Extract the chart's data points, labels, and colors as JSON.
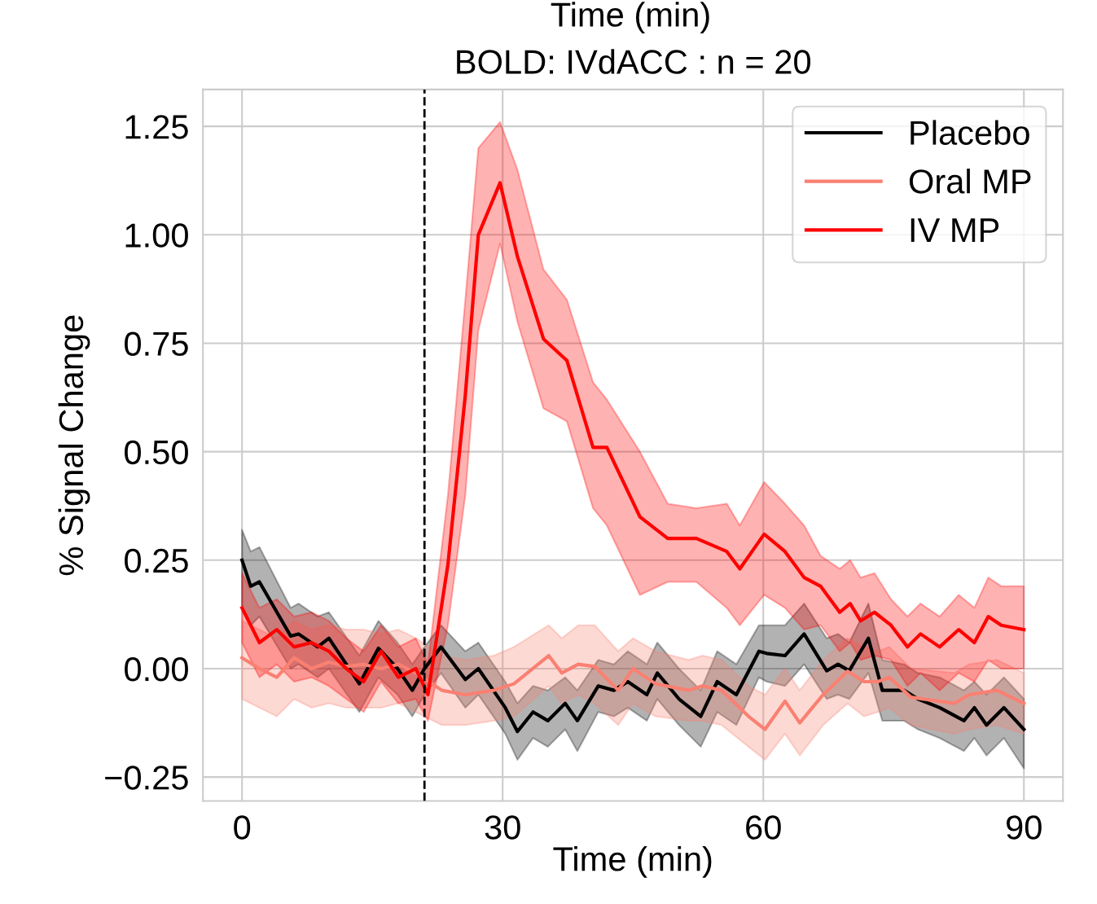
{
  "chart_data": {
    "type": "line",
    "title": "BOLD: IVdACC : n = 20",
    "xlabel": "Time (min)",
    "ylabel": "% Signal Change",
    "annotations": [
      "Time (min)"
    ],
    "xlim": [
      -4.5,
      94.5
    ],
    "xticks": [
      0,
      30,
      60,
      90
    ],
    "ylim": [
      -0.305,
      1.335
    ],
    "yticks": [
      {
        "value": -0.25,
        "label": "−0.25"
      },
      {
        "value": 0,
        "label": "0.00"
      },
      {
        "value": 0.25,
        "label": "0.25"
      },
      {
        "value": 0.5,
        "label": "0.50"
      },
      {
        "value": 0.75,
        "label": "0.75"
      },
      {
        "value": 1.0,
        "label": "1.00"
      },
      {
        "value": 1.25,
        "label": "1.25"
      }
    ],
    "grid": true,
    "legend": "top right",
    "line_style": "solid",
    "ref_lines": [
      {
        "axis": "x",
        "value": 21,
        "color": "#000000",
        "line_style": "dashed"
      }
    ],
    "series": [
      {
        "name": "Placebo",
        "color": "#000000",
        "x": [
          0,
          1,
          2,
          5.6,
          6.5,
          8.7,
          10,
          13.5,
          15.7,
          17.9,
          19.6,
          21,
          22.9,
          25.7,
          27.2,
          30.3,
          31.7,
          33.5,
          35.2,
          37.2,
          38.6,
          41,
          42.8,
          44.4,
          46.6,
          47.8,
          50.3,
          52.8,
          54.7,
          56.9,
          59.5,
          60.4,
          62.5,
          64.7,
          67.3,
          68.6,
          69.9,
          72.1,
          73.7,
          76.2,
          77.8,
          80.3,
          83.1,
          84.3,
          85.7,
          87.7,
          90
        ],
        "values": [
          0.25,
          0.19,
          0.2,
          0.075,
          0.08,
          0.05,
          0.07,
          -0.035,
          0.047,
          0.0,
          -0.05,
          0.0,
          0.05,
          -0.025,
          0.0,
          -0.09,
          -0.145,
          -0.1,
          -0.12,
          -0.08,
          -0.12,
          -0.04,
          -0.05,
          -0.03,
          -0.06,
          -0.01,
          -0.07,
          -0.11,
          -0.03,
          -0.06,
          0.04,
          0.035,
          0.03,
          0.08,
          -0.005,
          0.01,
          -0.005,
          0.07,
          -0.05,
          -0.05,
          -0.07,
          -0.09,
          -0.12,
          -0.09,
          -0.13,
          -0.09,
          -0.14
        ],
        "upper": [
          0.32,
          0.27,
          0.28,
          0.14,
          0.15,
          0.12,
          0.13,
          0.03,
          0.11,
          0.06,
          0.01,
          0.05,
          0.1,
          0.04,
          0.06,
          -0.03,
          -0.08,
          -0.04,
          -0.05,
          -0.02,
          -0.05,
          0.02,
          0.01,
          0.04,
          0.01,
          0.06,
          0.0,
          -0.05,
          0.04,
          0.01,
          0.1,
          0.1,
          0.1,
          0.15,
          0.07,
          0.08,
          0.06,
          0.15,
          0.02,
          0.01,
          -0.01,
          -0.02,
          -0.05,
          -0.03,
          -0.06,
          -0.02,
          -0.07
        ],
        "lower": [
          0.14,
          0.1,
          0.12,
          0.0,
          0.01,
          -0.02,
          0.0,
          -0.1,
          -0.02,
          -0.06,
          -0.11,
          -0.06,
          -0.01,
          -0.09,
          -0.06,
          -0.15,
          -0.21,
          -0.16,
          -0.18,
          -0.14,
          -0.19,
          -0.1,
          -0.11,
          -0.09,
          -0.12,
          -0.07,
          -0.13,
          -0.18,
          -0.1,
          -0.13,
          -0.02,
          -0.03,
          -0.04,
          0.01,
          -0.07,
          -0.06,
          -0.07,
          -0.01,
          -0.12,
          -0.12,
          -0.14,
          -0.16,
          -0.19,
          -0.16,
          -0.2,
          -0.16,
          -0.23
        ]
      },
      {
        "name": "Oral MP",
        "color": "#fa8072",
        "x": [
          0,
          2,
          4,
          6,
          8,
          10,
          12,
          14,
          16,
          18,
          20,
          23,
          25.7,
          29,
          31.3,
          35.3,
          36.8,
          38.7,
          40.6,
          43.3,
          45,
          47.6,
          51.4,
          53,
          55.2,
          58.3,
          60.2,
          62.5,
          64.2,
          66.9,
          69.7,
          71.6,
          73.2,
          74.5,
          77,
          82,
          83.7,
          86.9,
          90
        ],
        "values": [
          0.025,
          0.0,
          -0.02,
          0.025,
          0.0,
          0.015,
          0.005,
          0.01,
          0.0,
          0.01,
          -0.01,
          -0.05,
          -0.06,
          -0.05,
          -0.035,
          0.03,
          -0.01,
          0.01,
          0.005,
          -0.05,
          0.0,
          -0.035,
          -0.05,
          -0.04,
          -0.05,
          -0.11,
          -0.14,
          -0.075,
          -0.125,
          -0.06,
          -0.006,
          -0.03,
          -0.03,
          -0.02,
          -0.066,
          -0.08,
          -0.06,
          -0.05,
          -0.08
        ],
        "upper": [
          0.11,
          0.09,
          0.07,
          0.11,
          0.09,
          0.1,
          0.09,
          0.09,
          0.08,
          0.09,
          0.07,
          0.03,
          0.02,
          0.03,
          0.05,
          0.1,
          0.07,
          0.1,
          0.1,
          0.04,
          0.07,
          0.04,
          0.02,
          0.03,
          0.02,
          -0.04,
          -0.06,
          0.0,
          -0.05,
          0.02,
          0.07,
          0.05,
          0.04,
          0.05,
          0.0,
          -0.01,
          0.01,
          0.02,
          -0.01
        ],
        "lower": [
          -0.07,
          -0.09,
          -0.11,
          -0.07,
          -0.09,
          -0.08,
          -0.09,
          -0.09,
          -0.09,
          -0.08,
          -0.1,
          -0.13,
          -0.13,
          -0.12,
          -0.11,
          -0.04,
          -0.08,
          -0.06,
          -0.08,
          -0.13,
          -0.08,
          -0.11,
          -0.12,
          -0.12,
          -0.13,
          -0.18,
          -0.21,
          -0.15,
          -0.2,
          -0.13,
          -0.08,
          -0.11,
          -0.1,
          -0.09,
          -0.13,
          -0.15,
          -0.14,
          -0.13,
          -0.15
        ]
      },
      {
        "name": "IV MP",
        "color": "#ff0000",
        "x": [
          0,
          2,
          4,
          6,
          8,
          10,
          12,
          14,
          16,
          18,
          20,
          21.4,
          23.7,
          25.7,
          27.2,
          29.7,
          31.7,
          34.7,
          37.4,
          40.4,
          42,
          45.8,
          49,
          52.3,
          55.8,
          57.3,
          60.1,
          62.5,
          64.7,
          66.6,
          68.8,
          70,
          71.2,
          72.8,
          74.7,
          76.6,
          78.1,
          80.3,
          82.5,
          84.3,
          85.9,
          87.4,
          90
        ],
        "values": [
          0.14,
          0.06,
          0.09,
          0.05,
          0.06,
          0.04,
          0.0,
          -0.03,
          0.04,
          -0.02,
          0.0,
          -0.06,
          0.24,
          0.63,
          1.0,
          1.12,
          0.95,
          0.76,
          0.71,
          0.51,
          0.51,
          0.35,
          0.3,
          0.3,
          0.27,
          0.23,
          0.31,
          0.27,
          0.21,
          0.19,
          0.13,
          0.15,
          0.11,
          0.13,
          0.1,
          0.05,
          0.08,
          0.05,
          0.09,
          0.06,
          0.12,
          0.1,
          0.09
        ],
        "upper": [
          0.22,
          0.14,
          0.16,
          0.12,
          0.13,
          0.11,
          0.07,
          0.04,
          0.1,
          0.05,
          0.07,
          0.01,
          0.4,
          0.85,
          1.2,
          1.26,
          1.15,
          0.92,
          0.85,
          0.66,
          0.62,
          0.5,
          0.38,
          0.37,
          0.38,
          0.33,
          0.43,
          0.38,
          0.33,
          0.26,
          0.23,
          0.25,
          0.21,
          0.22,
          0.16,
          0.12,
          0.15,
          0.12,
          0.17,
          0.14,
          0.21,
          0.19,
          0.19
        ],
        "lower": [
          0.06,
          -0.02,
          0.01,
          -0.03,
          -0.02,
          -0.04,
          -0.07,
          -0.1,
          -0.03,
          -0.08,
          -0.07,
          -0.12,
          0.1,
          0.4,
          0.78,
          0.98,
          0.8,
          0.6,
          0.57,
          0.37,
          0.33,
          0.17,
          0.2,
          0.2,
          0.14,
          0.1,
          0.17,
          0.14,
          0.09,
          0.1,
          0.04,
          0.06,
          0.02,
          0.03,
          0.02,
          -0.04,
          -0.01,
          -0.05,
          -0.01,
          -0.03,
          0.02,
          0.0,
          0.0
        ]
      }
    ]
  }
}
